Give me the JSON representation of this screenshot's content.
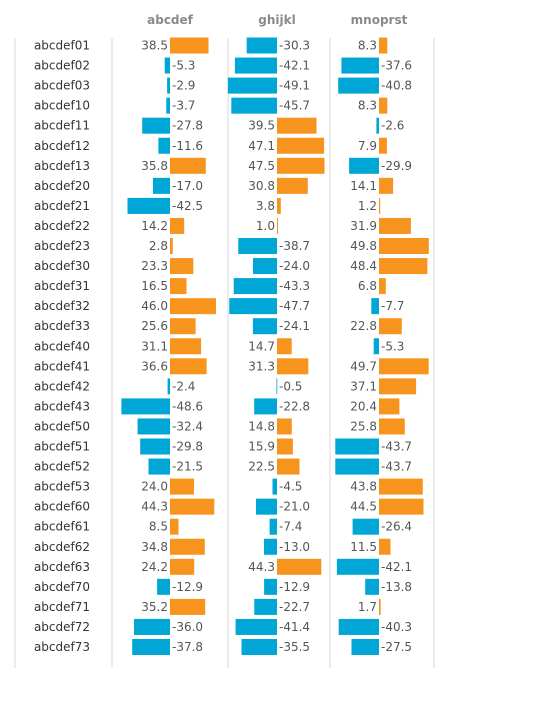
{
  "chart_data": {
    "type": "bar",
    "orientation": "horizontal",
    "layout": "small-multiples",
    "categories": [
      "abcdef01",
      "abcdef02",
      "abcdef03",
      "abcdef10",
      "abcdef11",
      "abcdef12",
      "abcdef13",
      "abcdef20",
      "abcdef21",
      "abcdef22",
      "abcdef23",
      "abcdef30",
      "abcdef31",
      "abcdef32",
      "abcdef33",
      "abcdef40",
      "abcdef41",
      "abcdef42",
      "abcdef43",
      "abcdef50",
      "abcdef51",
      "abcdef52",
      "abcdef53",
      "abcdef60",
      "abcdef61",
      "abcdef62",
      "abcdef63",
      "abcdef70",
      "abcdef71",
      "abcdef72",
      "abcdef73"
    ],
    "series": [
      {
        "name": "abcdef",
        "values": [
          38.5,
          -5.3,
          -2.9,
          -3.7,
          -27.8,
          -11.6,
          35.8,
          -17.0,
          -42.5,
          14.2,
          2.8,
          23.3,
          16.5,
          46.0,
          25.6,
          31.1,
          36.6,
          -2.4,
          -48.6,
          -32.4,
          -29.8,
          -21.5,
          24.0,
          44.3,
          8.5,
          34.8,
          24.2,
          -12.9,
          35.2,
          -36.0,
          -37.8
        ]
      },
      {
        "name": "ghijkl",
        "values": [
          -30.3,
          -42.1,
          -49.1,
          -45.7,
          39.5,
          47.1,
          47.5,
          30.8,
          3.8,
          1.0,
          -38.7,
          -24.0,
          -43.3,
          -47.7,
          -24.1,
          14.7,
          31.3,
          -0.5,
          -22.8,
          14.8,
          15.9,
          22.5,
          -4.5,
          -21.0,
          -7.4,
          -13.0,
          44.3,
          -12.9,
          -22.7,
          -41.4,
          -35.5
        ]
      },
      {
        "name": "mnoprst",
        "values": [
          8.3,
          -37.6,
          -40.8,
          8.3,
          -2.6,
          7.9,
          -29.9,
          14.1,
          1.2,
          31.9,
          49.8,
          48.4,
          6.8,
          -7.7,
          22.8,
          -5.3,
          49.7,
          37.1,
          20.4,
          25.8,
          -43.7,
          -43.7,
          43.8,
          44.5,
          -26.4,
          11.5,
          -42.1,
          -13.8,
          1.7,
          -40.3,
          -27.5
        ]
      }
    ],
    "value_format": "1 decimal",
    "colors": {
      "positive": "#f7941d",
      "negative": "#00a6d6",
      "divider": "#d9d9d9"
    },
    "grid": false,
    "legend": "none"
  }
}
